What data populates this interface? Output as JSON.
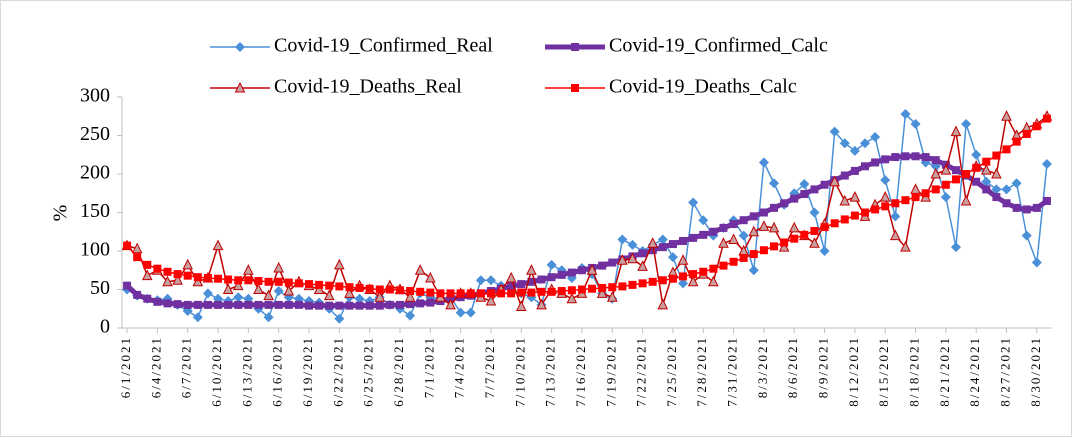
{
  "chart_data": {
    "type": "line",
    "y_label": "%",
    "categories": [
      "6/1/2021",
      null,
      null,
      "6/4/2021",
      null,
      null,
      "6/7/2021",
      null,
      null,
      "6/10/2021",
      null,
      null,
      "6/13/2021",
      null,
      null,
      "6/16/2021",
      null,
      null,
      "6/19/2021",
      null,
      null,
      "6/22/2021",
      null,
      null,
      "6/25/2021",
      null,
      null,
      "6/28/2021",
      null,
      null,
      "7/1/2021",
      null,
      null,
      "7/4/2021",
      null,
      null,
      "7/7/2021",
      null,
      null,
      "7/10/2021",
      null,
      null,
      "7/13/2021",
      null,
      null,
      "7/16/2021",
      null,
      null,
      "7/19/2021",
      null,
      null,
      "7/22/2021",
      null,
      null,
      "7/25/2021",
      null,
      null,
      "7/28/2021",
      null,
      null,
      "7/31/2021",
      null,
      null,
      "8/3/2021",
      null,
      null,
      "8/6/2021",
      null,
      null,
      "8/9/2021",
      null,
      null,
      "8/12/2021",
      null,
      null,
      "8/15/2021",
      null,
      null,
      "8/18/2021",
      null,
      null,
      "8/21/2021",
      null,
      null,
      "8/24/2021",
      null,
      null,
      "8/27/2021",
      null,
      null,
      "8/30/2021",
      null
    ],
    "series": [
      {
        "name": "Covid-19_Confirmed_Real",
        "color": "#4a90d9",
        "marker": "diamond",
        "values": [
          50,
          42,
          38,
          36,
          38,
          30,
          22,
          14,
          45,
          38,
          35,
          40,
          38,
          25,
          14,
          48,
          40,
          38,
          35,
          33,
          25,
          12,
          40,
          38,
          35,
          40,
          30,
          25,
          16,
          45,
          40,
          38,
          40,
          20,
          20,
          62,
          62,
          55,
          50,
          45,
          40,
          30,
          82,
          75,
          65,
          78,
          70,
          45,
          38,
          115,
          108,
          100,
          108,
          115,
          92,
          58,
          163,
          140,
          120,
          130,
          140,
          120,
          75,
          215,
          188,
          160,
          175,
          187,
          150,
          100,
          255,
          240,
          230,
          240,
          248,
          192,
          145,
          278,
          265,
          215,
          210,
          170,
          105,
          265,
          225,
          190,
          180,
          180,
          188,
          120,
          85,
          213
        ]
      },
      {
        "name": "Covid-19_Confirmed_Calc",
        "color": "#7030a0",
        "marker": "square",
        "values": [
          55,
          43,
          38,
          34,
          32,
          31,
          30,
          30,
          30,
          30,
          30,
          30,
          30,
          30,
          30,
          30,
          30,
          30,
          29,
          29,
          29,
          29,
          29,
          29,
          29,
          29,
          30,
          30,
          31,
          32,
          33,
          35,
          38,
          40,
          42,
          45,
          48,
          51,
          54,
          57,
          60,
          63,
          66,
          69,
          72,
          75,
          78,
          81,
          85,
          89,
          93,
          97,
          101,
          105,
          109,
          113,
          117,
          121,
          125,
          130,
          135,
          140,
          145,
          150,
          156,
          162,
          168,
          174,
          180,
          186,
          192,
          198,
          204,
          210,
          215,
          219,
          222,
          223,
          223,
          222,
          218,
          212,
          205,
          198,
          190,
          180,
          170,
          162,
          156,
          154,
          156,
          165
        ]
      },
      {
        "name": "Covid-19_Deaths_Real",
        "color": "#c00000",
        "marker": "triangle",
        "values": [
          107,
          103,
          68,
          75,
          60,
          62,
          82,
          60,
          65,
          107,
          50,
          55,
          75,
          50,
          42,
          78,
          48,
          60,
          55,
          50,
          42,
          82,
          45,
          55,
          50,
          40,
          55,
          50,
          40,
          75,
          65,
          40,
          30,
          45,
          45,
          40,
          35,
          50,
          65,
          28,
          75,
          30,
          50,
          45,
          38,
          45,
          75,
          45,
          40,
          88,
          90,
          80,
          110,
          30,
          72,
          88,
          60,
          70,
          60,
          110,
          115,
          100,
          125,
          132,
          130,
          105,
          130,
          120,
          110,
          135,
          190,
          165,
          170,
          145,
          160,
          170,
          120,
          105,
          180,
          170,
          200,
          205,
          255,
          165,
          210,
          205,
          200,
          275,
          250,
          260,
          265,
          275
        ]
      },
      {
        "name": "Covid-19_Deaths_Calc",
        "color": "#ff0000",
        "marker": "square",
        "values": [
          107,
          92,
          82,
          77,
          73,
          70,
          68,
          66,
          65,
          64,
          63,
          62,
          62,
          61,
          60,
          60,
          59,
          58,
          57,
          56,
          55,
          54,
          53,
          52,
          51,
          50,
          50,
          49,
          48,
          47,
          46,
          45,
          45,
          45,
          45,
          45,
          45,
          45,
          45,
          46,
          46,
          47,
          47,
          48,
          49,
          50,
          51,
          52,
          53,
          54,
          56,
          58,
          60,
          62,
          64,
          67,
          70,
          73,
          77,
          81,
          86,
          91,
          96,
          101,
          106,
          111,
          116,
          121,
          126,
          131,
          136,
          141,
          146,
          150,
          154,
          158,
          162,
          166,
          170,
          175,
          180,
          186,
          193,
          200,
          208,
          216,
          224,
          232,
          242,
          252,
          262,
          272
        ]
      }
    ],
    "ylim": [
      0,
      300
    ],
    "yticks": [
      0,
      50,
      100,
      150,
      200,
      250,
      300
    ],
    "grid": false
  }
}
